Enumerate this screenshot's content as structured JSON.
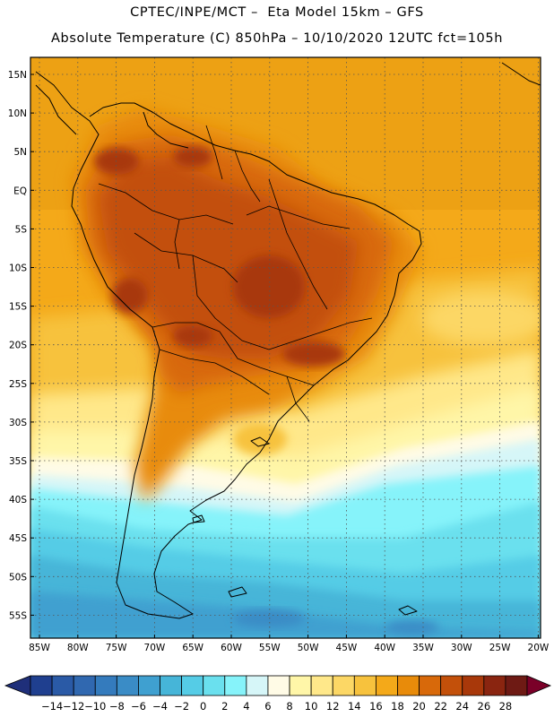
{
  "header": {
    "line1": "CPTEC/INPE/MCT –  Eta Model 15km – GFS",
    "line2": "Absolute Temperature (C) 850hPa – 10/10/2020 12UTC fct=105h"
  },
  "axes": {
    "lat_labels": [
      "15N",
      "10N",
      "5N",
      "EQ",
      "5S",
      "10S",
      "15S",
      "20S",
      "25S",
      "30S",
      "35S",
      "40S",
      "45S",
      "50S",
      "55S"
    ],
    "lon_labels": [
      "85W",
      "80W",
      "75W",
      "70W",
      "65W",
      "60W",
      "55W",
      "50W",
      "45W",
      "40W",
      "35W",
      "30W",
      "25W",
      "20W"
    ]
  },
  "colorbar": {
    "labels": [
      "-14",
      "-12",
      "-10",
      "-8",
      "-6",
      "-4",
      "-2",
      "0",
      "2",
      "4",
      "6",
      "8",
      "10",
      "12",
      "14",
      "16",
      "18",
      "20",
      "22",
      "24",
      "26",
      "28"
    ],
    "colors": [
      "#1f3f8f",
      "#2a5aa6",
      "#3068b0",
      "#347bbd",
      "#3a8cc6",
      "#3fa0d0",
      "#46b5d8",
      "#55cce6",
      "#6ae0ee",
      "#86f3fa",
      "#d6f6f8",
      "#fffbe6",
      "#fff6a8",
      "#ffe88a",
      "#fcd765",
      "#f7c23d",
      "#f4a919",
      "#e88b0a",
      "#d8690a",
      "#c3500a",
      "#a8380a",
      "#8a2510",
      "#6e1a14"
    ],
    "low_color": "#1f2f7a",
    "high_color": "#7a0028"
  }
}
